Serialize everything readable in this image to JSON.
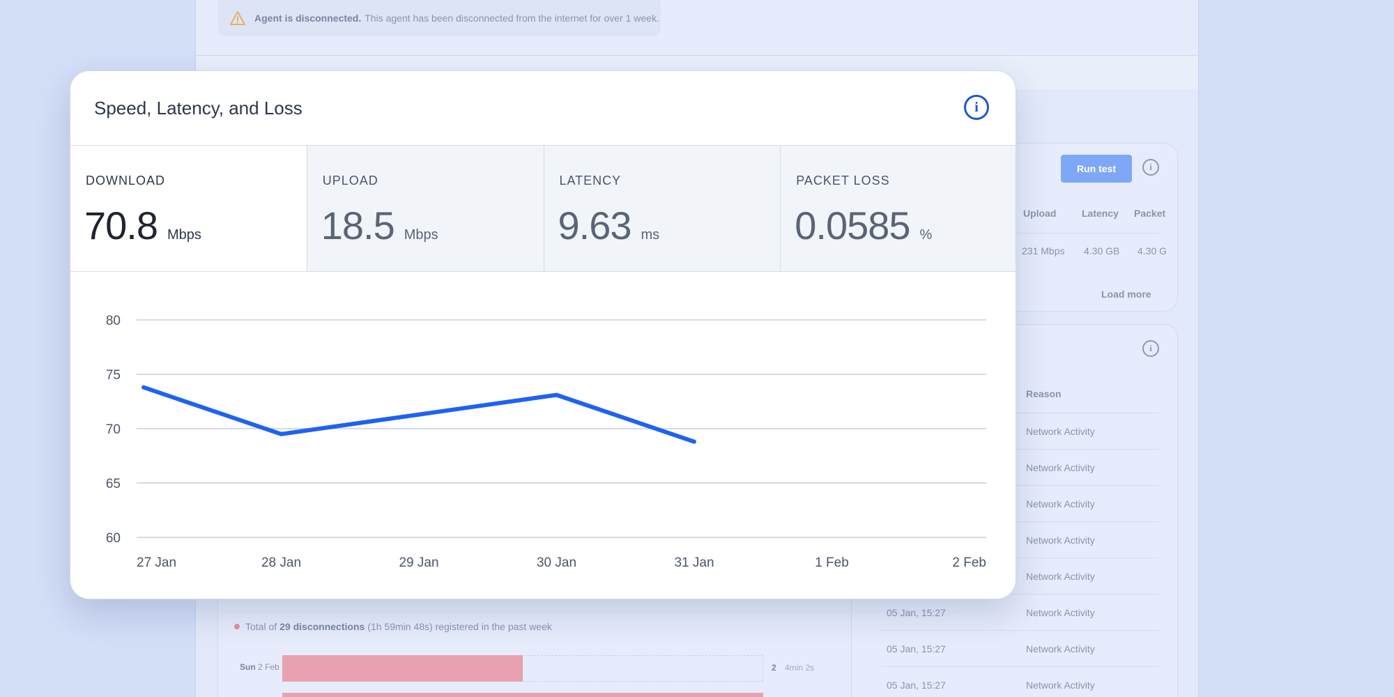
{
  "alert": {
    "title": "Agent is disconnected.",
    "message": "This agent has been disconnected from the internet for over 1 week."
  },
  "speed_card": {
    "run_test_label": "Run test",
    "columns": [
      "Upload",
      "Latency",
      "Packet"
    ],
    "row": [
      "231 Mbps",
      "4.30 GB",
      "4.30 G"
    ],
    "load_more_label": "Load more"
  },
  "disconnections_table": {
    "reason_header": "Reason",
    "rows": [
      {
        "date": "",
        "reason": "Network Activity"
      },
      {
        "date": "",
        "reason": "Network Activity"
      },
      {
        "date": "",
        "reason": "Network Activity"
      },
      {
        "date": "",
        "reason": "Network Activity"
      },
      {
        "date": "",
        "reason": "Network Activity"
      },
      {
        "date": "05 Jan, 15:27",
        "reason": "Network Activity"
      },
      {
        "date": "05 Jan, 15:27",
        "reason": "Network Activity"
      },
      {
        "date": "05 Jan, 15:27",
        "reason": "Network Activity"
      }
    ]
  },
  "disconnections_summary": {
    "prefix": "Total of",
    "count_text": "29 disconnections",
    "suffix": "(1h 59min 48s) registered in the past week",
    "day_name": "Sun",
    "day_date": "2 Feb",
    "day_count": "2",
    "day_duration": "4min 2s",
    "day_fraction": 0.5
  },
  "modal": {
    "title": "Speed, Latency, and Loss",
    "metrics": [
      {
        "label": "DOWNLOAD",
        "value": "70.8",
        "unit": "Mbps",
        "active": true
      },
      {
        "label": "UPLOAD",
        "value": "18.5",
        "unit": "Mbps",
        "active": false
      },
      {
        "label": "LATENCY",
        "value": "9.63",
        "unit": "ms",
        "active": false
      },
      {
        "label": "PACKET LOSS",
        "value": "0.0585",
        "unit": "%",
        "active": false
      }
    ]
  },
  "colors": {
    "accent": "#1e63ef",
    "info_icon": "#1e56d8",
    "grid": "#d4dbe6",
    "disconnect_bar": "#e8a1b0",
    "run_button": "#7ea8f5"
  },
  "icons": {
    "info": "info-circle-icon",
    "warning": "warning-triangle-icon"
  },
  "chart_data": {
    "type": "line",
    "categories": [
      "27 Jan",
      "28 Jan",
      "29 Jan",
      "30 Jan",
      "31 Jan",
      "1 Feb",
      "2 Feb"
    ],
    "series": [
      {
        "values": [
          73.8,
          69.5,
          71.3,
          73.1,
          68.8,
          null,
          null
        ]
      }
    ],
    "yticks": [
      80,
      75,
      70,
      65,
      60
    ],
    "ylim": [
      60,
      80
    ],
    "grid": true,
    "title": "",
    "xlabel": "",
    "ylabel": ""
  }
}
